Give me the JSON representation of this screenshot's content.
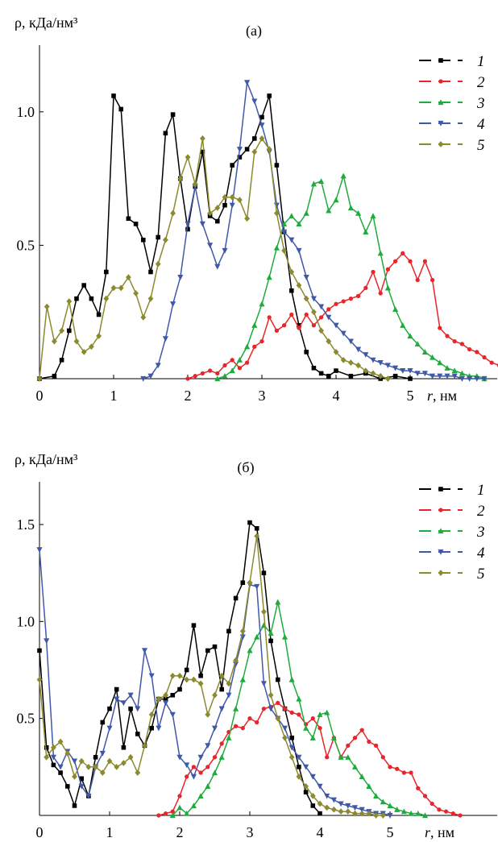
{
  "colors": {
    "1": "#000000",
    "2": "#e8262a",
    "3": "#1fab3e",
    "4": "#3f58a8",
    "5": "#8b8a2e"
  },
  "chart_data": [
    {
      "type": "line",
      "panel_label": "(а)",
      "ylabel": "ρ, кДа/нм³",
      "xlabel_var": "r",
      "xlabel_unit": ", нм",
      "xlim": [
        0,
        6.3
      ],
      "ylim": [
        0,
        1.25
      ],
      "xticks": [
        "0",
        "1",
        "2",
        "3",
        "4",
        "5"
      ],
      "yticks": [
        "0.5",
        "1.0"
      ],
      "legend_placement": "top-right",
      "series": [
        {
          "name": "1",
          "marker": "square",
          "x": [
            0.0,
            0.2,
            0.3,
            0.4,
            0.5,
            0.6,
            0.7,
            0.8,
            0.9,
            1.0,
            1.1,
            1.2,
            1.3,
            1.4,
            1.5,
            1.6,
            1.7,
            1.8,
            1.9,
            2.0,
            2.1,
            2.2,
            2.3,
            2.4,
            2.5,
            2.6,
            2.7,
            2.8,
            2.9,
            3.0,
            3.1,
            3.2,
            3.3,
            3.4,
            3.5,
            3.6,
            3.7,
            3.8,
            3.9,
            4.0,
            4.2,
            4.4,
            4.6,
            4.8,
            5.0
          ],
          "y": [
            0.0,
            0.01,
            0.07,
            0.18,
            0.3,
            0.35,
            0.3,
            0.24,
            0.4,
            1.06,
            1.01,
            0.6,
            0.58,
            0.52,
            0.4,
            0.53,
            0.92,
            0.99,
            0.75,
            0.56,
            0.72,
            0.85,
            0.61,
            0.59,
            0.65,
            0.8,
            0.83,
            0.86,
            0.9,
            0.98,
            1.06,
            0.8,
            0.55,
            0.33,
            0.2,
            0.1,
            0.04,
            0.02,
            0.01,
            0.03,
            0.01,
            0.02,
            0.0,
            0.01,
            0.0
          ]
        },
        {
          "name": "2",
          "marker": "circle",
          "x": [
            2.0,
            2.1,
            2.2,
            2.3,
            2.4,
            2.5,
            2.6,
            2.7,
            2.8,
            2.9,
            3.0,
            3.1,
            3.2,
            3.3,
            3.4,
            3.5,
            3.6,
            3.7,
            3.8,
            3.9,
            4.0,
            4.1,
            4.2,
            4.3,
            4.4,
            4.5,
            4.6,
            4.7,
            4.8,
            4.9,
            5.0,
            5.1,
            5.2,
            5.3,
            5.4,
            5.5,
            5.6,
            5.7,
            5.8,
            5.9,
            6.0,
            6.1,
            6.2,
            6.3
          ],
          "y": [
            0.0,
            0.01,
            0.02,
            0.03,
            0.02,
            0.05,
            0.07,
            0.04,
            0.06,
            0.12,
            0.14,
            0.23,
            0.18,
            0.2,
            0.24,
            0.19,
            0.24,
            0.2,
            0.23,
            0.26,
            0.28,
            0.29,
            0.3,
            0.31,
            0.34,
            0.4,
            0.32,
            0.41,
            0.44,
            0.47,
            0.44,
            0.37,
            0.44,
            0.37,
            0.19,
            0.16,
            0.14,
            0.13,
            0.11,
            0.1,
            0.08,
            0.06,
            0.05,
            0.04
          ]
        },
        {
          "name": "3",
          "marker": "triangle-up",
          "x": [
            2.4,
            2.5,
            2.6,
            2.7,
            2.8,
            2.9,
            3.0,
            3.1,
            3.2,
            3.3,
            3.4,
            3.5,
            3.6,
            3.7,
            3.8,
            3.9,
            4.0,
            4.1,
            4.2,
            4.3,
            4.4,
            4.5,
            4.6,
            4.7,
            4.8,
            4.9,
            5.0,
            5.1,
            5.2,
            5.3,
            5.4,
            5.5,
            5.6,
            5.7,
            5.8,
            5.9,
            6.0
          ],
          "y": [
            0.0,
            0.01,
            0.03,
            0.07,
            0.12,
            0.2,
            0.28,
            0.38,
            0.49,
            0.58,
            0.61,
            0.58,
            0.62,
            0.73,
            0.74,
            0.63,
            0.67,
            0.76,
            0.64,
            0.62,
            0.55,
            0.61,
            0.47,
            0.34,
            0.26,
            0.2,
            0.16,
            0.13,
            0.1,
            0.08,
            0.06,
            0.04,
            0.03,
            0.02,
            0.01,
            0.01,
            0.0
          ]
        },
        {
          "name": "4",
          "marker": "triangle-down",
          "x": [
            1.4,
            1.5,
            1.6,
            1.7,
            1.8,
            1.9,
            2.0,
            2.1,
            2.2,
            2.3,
            2.4,
            2.5,
            2.6,
            2.7,
            2.8,
            2.9,
            3.0,
            3.1,
            3.2,
            3.3,
            3.4,
            3.5,
            3.6,
            3.7,
            3.8,
            3.9,
            4.0,
            4.1,
            4.2,
            4.3,
            4.4,
            4.5,
            4.6,
            4.7,
            4.8,
            4.9,
            5.0,
            5.1,
            5.2,
            5.3,
            5.4,
            5.5,
            5.6,
            5.7,
            5.8,
            5.9,
            6.0
          ],
          "y": [
            0.0,
            0.01,
            0.05,
            0.15,
            0.28,
            0.38,
            0.58,
            0.72,
            0.58,
            0.5,
            0.42,
            0.48,
            0.65,
            0.86,
            1.11,
            1.04,
            0.95,
            0.85,
            0.65,
            0.55,
            0.52,
            0.48,
            0.38,
            0.3,
            0.27,
            0.23,
            0.2,
            0.17,
            0.14,
            0.11,
            0.09,
            0.07,
            0.06,
            0.05,
            0.04,
            0.03,
            0.03,
            0.02,
            0.02,
            0.01,
            0.01,
            0.01,
            0.01,
            0.0,
            0.0,
            0.0,
            0.0
          ]
        },
        {
          "name": "5",
          "marker": "diamond",
          "x": [
            0.0,
            0.1,
            0.2,
            0.3,
            0.4,
            0.5,
            0.6,
            0.7,
            0.8,
            0.9,
            1.0,
            1.1,
            1.2,
            1.3,
            1.4,
            1.5,
            1.6,
            1.7,
            1.8,
            1.9,
            2.0,
            2.1,
            2.2,
            2.3,
            2.4,
            2.5,
            2.6,
            2.7,
            2.8,
            2.9,
            3.0,
            3.1,
            3.2,
            3.3,
            3.4,
            3.5,
            3.6,
            3.7,
            3.8,
            3.9,
            4.0,
            4.1,
            4.2,
            4.3,
            4.4,
            4.5,
            4.6,
            4.7
          ],
          "y": [
            0.0,
            0.27,
            0.14,
            0.18,
            0.29,
            0.14,
            0.1,
            0.12,
            0.16,
            0.3,
            0.34,
            0.34,
            0.38,
            0.32,
            0.23,
            0.3,
            0.43,
            0.52,
            0.62,
            0.75,
            0.83,
            0.73,
            0.9,
            0.62,
            0.64,
            0.68,
            0.68,
            0.67,
            0.6,
            0.85,
            0.9,
            0.86,
            0.62,
            0.48,
            0.4,
            0.35,
            0.3,
            0.25,
            0.18,
            0.14,
            0.1,
            0.07,
            0.06,
            0.05,
            0.03,
            0.02,
            0.01,
            0.0
          ]
        }
      ]
    },
    {
      "type": "line",
      "panel_label": "(б)",
      "ylabel": "ρ, кДа/нм³",
      "xlabel_var": "r",
      "xlabel_unit": ", нм",
      "xlim": [
        0,
        6.3
      ],
      "ylim": [
        0,
        1.72
      ],
      "xticks": [
        "0",
        "1",
        "2",
        "3",
        "4",
        "5"
      ],
      "yticks": [
        "0.5",
        "1.0",
        "1.5"
      ],
      "legend_placement": "top-right",
      "series": [
        {
          "name": "1",
          "marker": "square",
          "x": [
            0.0,
            0.1,
            0.2,
            0.3,
            0.4,
            0.5,
            0.6,
            0.7,
            0.8,
            0.9,
            1.0,
            1.1,
            1.2,
            1.3,
            1.4,
            1.5,
            1.6,
            1.7,
            1.8,
            1.9,
            2.0,
            2.1,
            2.2,
            2.3,
            2.4,
            2.5,
            2.6,
            2.7,
            2.8,
            2.9,
            3.0,
            3.1,
            3.2,
            3.3,
            3.4,
            3.5,
            3.6,
            3.7,
            3.8,
            3.9,
            4.0
          ],
          "y": [
            0.85,
            0.35,
            0.26,
            0.22,
            0.15,
            0.05,
            0.19,
            0.1,
            0.3,
            0.48,
            0.55,
            0.65,
            0.35,
            0.55,
            0.42,
            0.36,
            0.45,
            0.6,
            0.6,
            0.62,
            0.65,
            0.75,
            0.98,
            0.72,
            0.85,
            0.87,
            0.65,
            0.95,
            1.12,
            1.2,
            1.51,
            1.48,
            1.25,
            0.9,
            0.7,
            0.55,
            0.4,
            0.25,
            0.12,
            0.05,
            0.01
          ]
        },
        {
          "name": "2",
          "marker": "circle",
          "x": [
            1.7,
            1.8,
            1.9,
            2.0,
            2.1,
            2.2,
            2.3,
            2.4,
            2.5,
            2.6,
            2.7,
            2.8,
            2.9,
            3.0,
            3.1,
            3.2,
            3.3,
            3.4,
            3.5,
            3.6,
            3.7,
            3.8,
            3.9,
            4.0,
            4.1,
            4.2,
            4.3,
            4.4,
            4.5,
            4.6,
            4.7,
            4.8,
            4.9,
            5.0,
            5.1,
            5.2,
            5.3,
            5.4,
            5.5,
            5.6,
            5.7,
            5.8,
            5.9,
            6.0
          ],
          "y": [
            0.0,
            0.01,
            0.02,
            0.1,
            0.2,
            0.25,
            0.22,
            0.25,
            0.3,
            0.37,
            0.43,
            0.46,
            0.45,
            0.5,
            0.48,
            0.55,
            0.56,
            0.58,
            0.55,
            0.53,
            0.52,
            0.47,
            0.5,
            0.45,
            0.3,
            0.4,
            0.3,
            0.36,
            0.4,
            0.44,
            0.38,
            0.36,
            0.3,
            0.25,
            0.24,
            0.22,
            0.22,
            0.14,
            0.1,
            0.06,
            0.03,
            0.02,
            0.01,
            0.0
          ]
        },
        {
          "name": "3",
          "marker": "triangle-up",
          "x": [
            1.9,
            2.0,
            2.1,
            2.2,
            2.3,
            2.4,
            2.5,
            2.6,
            2.7,
            2.8,
            2.9,
            3.0,
            3.1,
            3.2,
            3.3,
            3.4,
            3.5,
            3.6,
            3.7,
            3.8,
            3.9,
            4.0,
            4.1,
            4.2,
            4.3,
            4.4,
            4.5,
            4.6,
            4.7,
            4.8,
            4.9,
            5.0,
            5.1,
            5.2,
            5.3,
            5.4,
            5.5
          ],
          "y": [
            0.0,
            0.04,
            0.01,
            0.05,
            0.1,
            0.15,
            0.22,
            0.3,
            0.4,
            0.55,
            0.7,
            0.85,
            0.92,
            0.98,
            0.94,
            1.1,
            0.92,
            0.7,
            0.6,
            0.45,
            0.4,
            0.52,
            0.53,
            0.4,
            0.3,
            0.3,
            0.25,
            0.2,
            0.15,
            0.1,
            0.07,
            0.05,
            0.03,
            0.02,
            0.01,
            0.01,
            0.0
          ]
        },
        {
          "name": "4",
          "marker": "triangle-down",
          "x": [
            0.0,
            0.1,
            0.2,
            0.3,
            0.4,
            0.5,
            0.6,
            0.7,
            0.8,
            0.9,
            1.0,
            1.1,
            1.2,
            1.3,
            1.4,
            1.5,
            1.6,
            1.7,
            1.8,
            1.9,
            2.0,
            2.1,
            2.2,
            2.3,
            2.4,
            2.5,
            2.6,
            2.7,
            2.8,
            2.9,
            3.0,
            3.1,
            3.2,
            3.3,
            3.4,
            3.5,
            3.6,
            3.7,
            3.8,
            3.9,
            4.0,
            4.1,
            4.2,
            4.3,
            4.4,
            4.5,
            4.6,
            4.7,
            4.8,
            4.9,
            5.0
          ],
          "y": [
            1.37,
            0.9,
            0.3,
            0.25,
            0.33,
            0.28,
            0.15,
            0.1,
            0.25,
            0.32,
            0.45,
            0.6,
            0.58,
            0.62,
            0.55,
            0.85,
            0.72,
            0.45,
            0.58,
            0.52,
            0.3,
            0.26,
            0.2,
            0.3,
            0.36,
            0.45,
            0.55,
            0.62,
            0.78,
            0.92,
            1.19,
            1.18,
            0.68,
            0.55,
            0.5,
            0.45,
            0.35,
            0.3,
            0.25,
            0.2,
            0.15,
            0.1,
            0.08,
            0.06,
            0.05,
            0.04,
            0.03,
            0.02,
            0.01,
            0.01,
            0.0
          ]
        },
        {
          "name": "5",
          "marker": "diamond",
          "x": [
            0.0,
            0.1,
            0.2,
            0.3,
            0.4,
            0.5,
            0.6,
            0.7,
            0.8,
            0.9,
            1.0,
            1.1,
            1.2,
            1.3,
            1.4,
            1.5,
            1.6,
            1.7,
            1.8,
            1.9,
            2.0,
            2.1,
            2.2,
            2.3,
            2.4,
            2.5,
            2.6,
            2.7,
            2.8,
            2.9,
            3.0,
            3.1,
            3.2,
            3.3,
            3.4,
            3.5,
            3.6,
            3.7,
            3.8,
            3.9,
            4.0,
            4.1,
            4.2,
            4.3,
            4.4,
            4.5,
            4.6,
            4.7,
            4.8,
            4.9
          ],
          "y": [
            0.7,
            0.3,
            0.35,
            0.38,
            0.32,
            0.2,
            0.28,
            0.25,
            0.25,
            0.22,
            0.28,
            0.25,
            0.27,
            0.3,
            0.22,
            0.36,
            0.52,
            0.6,
            0.62,
            0.72,
            0.72,
            0.7,
            0.7,
            0.68,
            0.52,
            0.62,
            0.72,
            0.68,
            0.8,
            0.95,
            1.2,
            1.44,
            1.05,
            0.62,
            0.5,
            0.4,
            0.3,
            0.2,
            0.15,
            0.1,
            0.06,
            0.04,
            0.03,
            0.02,
            0.02,
            0.01,
            0.01,
            0.01,
            0.0,
            0.0
          ]
        }
      ]
    }
  ]
}
